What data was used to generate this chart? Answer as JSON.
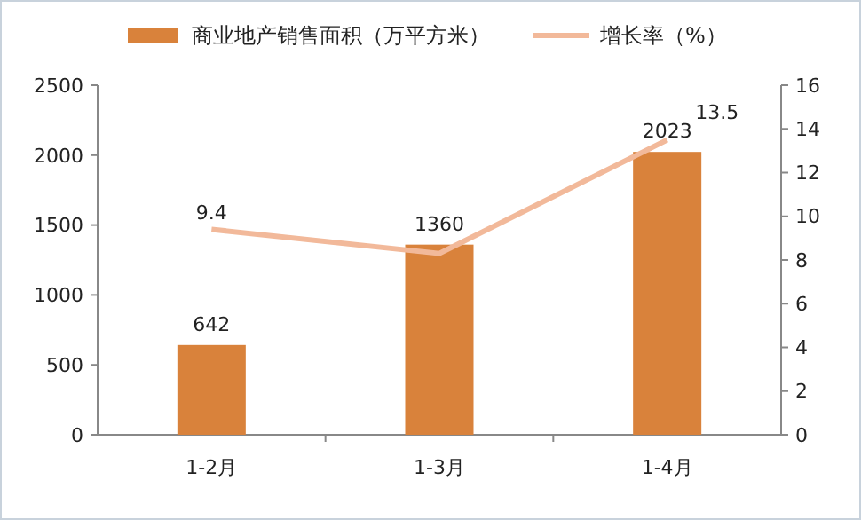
{
  "chart_data": {
    "type": "bar",
    "categories": [
      "1-2月",
      "1-3月",
      "1-4月"
    ],
    "series": [
      {
        "name": "商业地产销售面积（万平方米）",
        "color": "#d9823b",
        "values": [
          642,
          1360,
          2023
        ],
        "value_labels": [
          "642",
          "1360",
          "2023"
        ]
      },
      {
        "name": "增长率（%）",
        "type": "line",
        "axis": "y2",
        "color": "#f2b99a",
        "values": [
          9.4,
          8.3,
          13.5
        ],
        "value_labels": [
          "9.4",
          null,
          "13.5"
        ]
      }
    ],
    "ylim": [
      0,
      2500
    ],
    "yticks": [
      0,
      500,
      1000,
      1500,
      2000,
      2500
    ],
    "y2lim": [
      0,
      16
    ],
    "y2ticks": [
      0,
      2,
      4,
      6,
      8,
      10,
      12,
      14,
      16
    ],
    "legend": "top",
    "grid": false,
    "marker": "none"
  }
}
